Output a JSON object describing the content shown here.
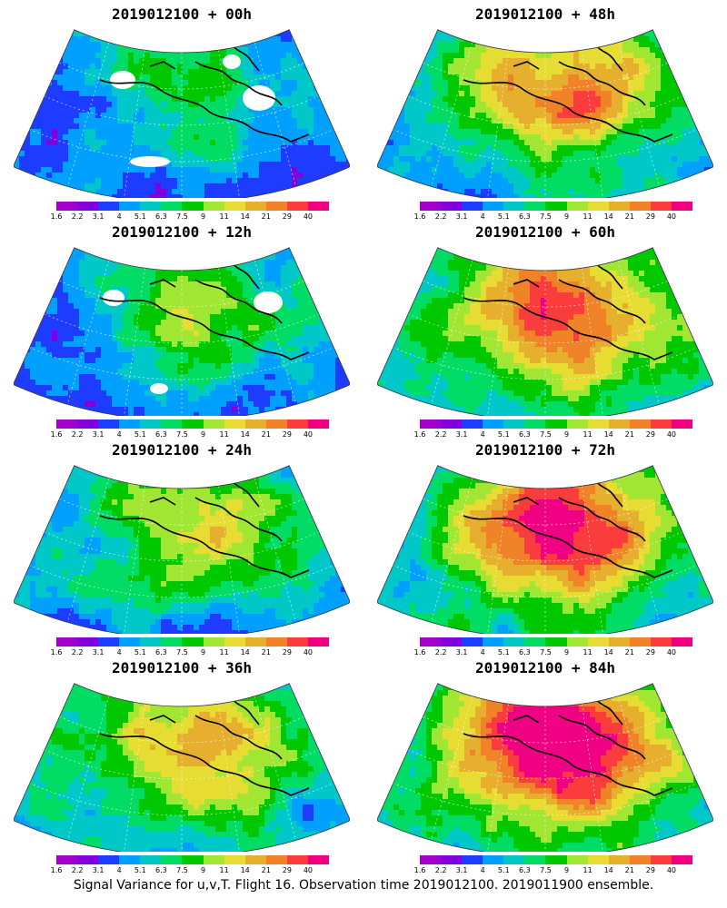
{
  "panels": [
    {
      "title": "2019012100 + 00h",
      "intensity": 0.3
    },
    {
      "title": "2019012100 + 48h",
      "intensity": 0.62
    },
    {
      "title": "2019012100 + 12h",
      "intensity": 0.38
    },
    {
      "title": "2019012100 + 60h",
      "intensity": 0.7
    },
    {
      "title": "2019012100 + 24h",
      "intensity": 0.45
    },
    {
      "title": "2019012100 + 72h",
      "intensity": 0.78
    },
    {
      "title": "2019012100 + 36h",
      "intensity": 0.55
    },
    {
      "title": "2019012100 + 84h",
      "intensity": 0.85
    }
  ],
  "colorbar": {
    "labels": [
      "1.6",
      "2.2",
      "3.1",
      "4",
      "5.1",
      "6.3",
      "7.5",
      "9",
      "11",
      "14",
      "21",
      "29",
      "40"
    ],
    "colors": [
      "#a000c8",
      "#8200dc",
      "#1e3cff",
      "#00a0ff",
      "#00c8c8",
      "#00dc64",
      "#00c800",
      "#a0e632",
      "#e6dc32",
      "#e6af2d",
      "#f08228",
      "#fa3c3c",
      "#f00082"
    ]
  },
  "footer": "Signal Variance for u,v,T. Flight 16. Observation time 2019012100. 2019011900 ensemble."
}
